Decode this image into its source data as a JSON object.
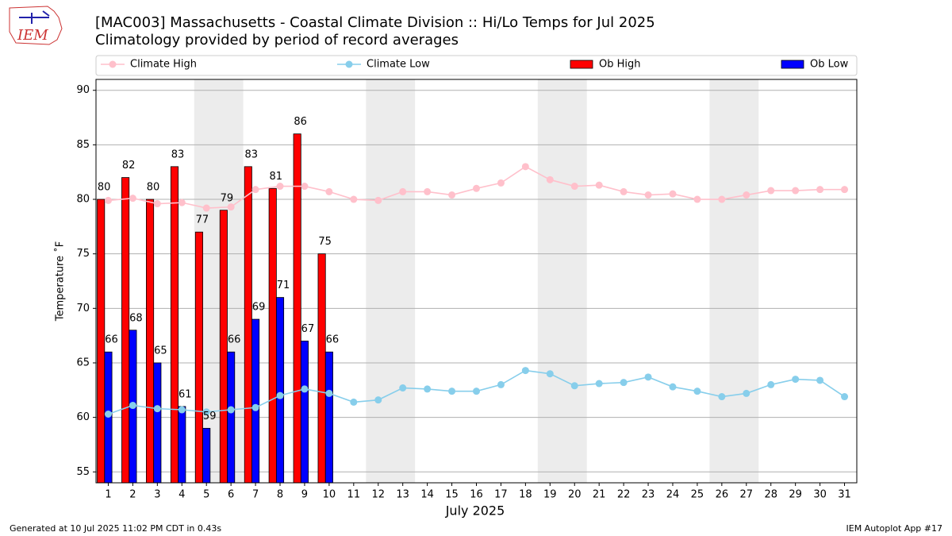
{
  "logo": "IEM",
  "footer": {
    "left": "Generated at 10 Jul 2025 11:02 PM CDT in 0.43s",
    "right": "IEM Autoplot App #17"
  },
  "chart_data": {
    "type": "bar",
    "title": "[MAC003] Massachusetts - Coastal Climate Division :: Hi/Lo Temps for Jul 2025",
    "subtitle": "Climatology provided by period of record averages",
    "x_label": "July 2025",
    "y_label": "Temperature ˚F",
    "x": [
      1,
      2,
      3,
      4,
      5,
      6,
      7,
      8,
      9,
      10,
      11,
      12,
      13,
      14,
      15,
      16,
      17,
      18,
      19,
      20,
      21,
      22,
      23,
      24,
      25,
      26,
      27,
      28,
      29,
      30,
      31
    ],
    "xlim": [
      0.5,
      31.5
    ],
    "xticks": [
      1,
      2,
      3,
      4,
      5,
      6,
      7,
      8,
      9,
      10,
      11,
      12,
      13,
      14,
      15,
      16,
      17,
      18,
      19,
      20,
      21,
      22,
      23,
      24,
      25,
      26,
      27,
      28,
      29,
      30,
      31
    ],
    "ylim": [
      54,
      91
    ],
    "yticks": [
      55,
      60,
      65,
      70,
      75,
      80,
      85,
      90
    ],
    "grid": true,
    "shaded_spans": [
      [
        4.5,
        6.5
      ],
      [
        11.5,
        13.5
      ],
      [
        18.5,
        20.5
      ],
      [
        25.5,
        27.5
      ]
    ],
    "series": [
      {
        "name": "Climate High",
        "type": "line",
        "color": "#ffc0cb",
        "values": [
          79.9,
          80.1,
          79.6,
          79.7,
          79.2,
          79.3,
          80.9,
          81.2,
          81.2,
          80.7,
          80.0,
          79.9,
          80.7,
          80.7,
          80.4,
          81.0,
          81.5,
          83.0,
          81.8,
          81.2,
          81.3,
          80.7,
          80.4,
          80.5,
          80.0,
          80.0,
          80.4,
          80.8,
          80.8,
          80.9,
          80.9
        ]
      },
      {
        "name": "Climate Low",
        "type": "line",
        "color": "#87ceeb",
        "values": [
          60.3,
          61.1,
          60.8,
          60.7,
          60.5,
          60.7,
          60.9,
          62.0,
          62.6,
          62.2,
          61.4,
          61.6,
          62.7,
          62.6,
          62.4,
          62.4,
          63.0,
          64.3,
          64.0,
          62.9,
          63.1,
          63.2,
          63.7,
          62.8,
          62.4,
          61.9,
          62.2,
          63.0,
          63.5,
          63.4,
          61.9
        ]
      },
      {
        "name": "Ob High",
        "type": "bar",
        "color": "#ff0000",
        "values": [
          80,
          82,
          80,
          83,
          77,
          79,
          83,
          81,
          86,
          75,
          null,
          null,
          null,
          null,
          null,
          null,
          null,
          null,
          null,
          null,
          null,
          null,
          null,
          null,
          null,
          null,
          null,
          null,
          null,
          null,
          null
        ]
      },
      {
        "name": "Ob Low",
        "type": "bar",
        "color": "#0000ff",
        "values": [
          66,
          68,
          65,
          61,
          59,
          66,
          69,
          71,
          67,
          66,
          null,
          null,
          null,
          null,
          null,
          null,
          null,
          null,
          null,
          null,
          null,
          null,
          null,
          null,
          null,
          null,
          null,
          null,
          null,
          null,
          null
        ]
      }
    ]
  }
}
